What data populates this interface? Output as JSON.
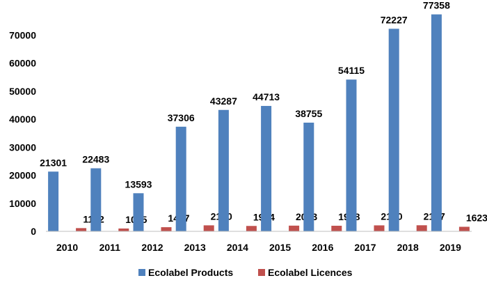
{
  "chart_data": {
    "type": "bar",
    "categories": [
      "2010",
      "2011",
      "2012",
      "2013",
      "2014",
      "2015",
      "2016",
      "2017",
      "2018",
      "2019"
    ],
    "series": [
      {
        "name": "Ecolabel Products",
        "color": "#4f81bd",
        "values": [
          21301,
          22483,
          13593,
          37306,
          43287,
          44713,
          38755,
          54115,
          72227,
          77358
        ]
      },
      {
        "name": "Ecolabel Licences",
        "color": "#c0504d",
        "values": [
          1152,
          1015,
          1477,
          2140,
          1924,
          2033,
          1998,
          2130,
          2167,
          1623
        ]
      }
    ],
    "y_ticks": [
      0,
      10000,
      20000,
      30000,
      40000,
      50000,
      60000,
      70000
    ],
    "ylim": [
      0,
      80000
    ],
    "grid": false,
    "legend": "bottom-center"
  }
}
